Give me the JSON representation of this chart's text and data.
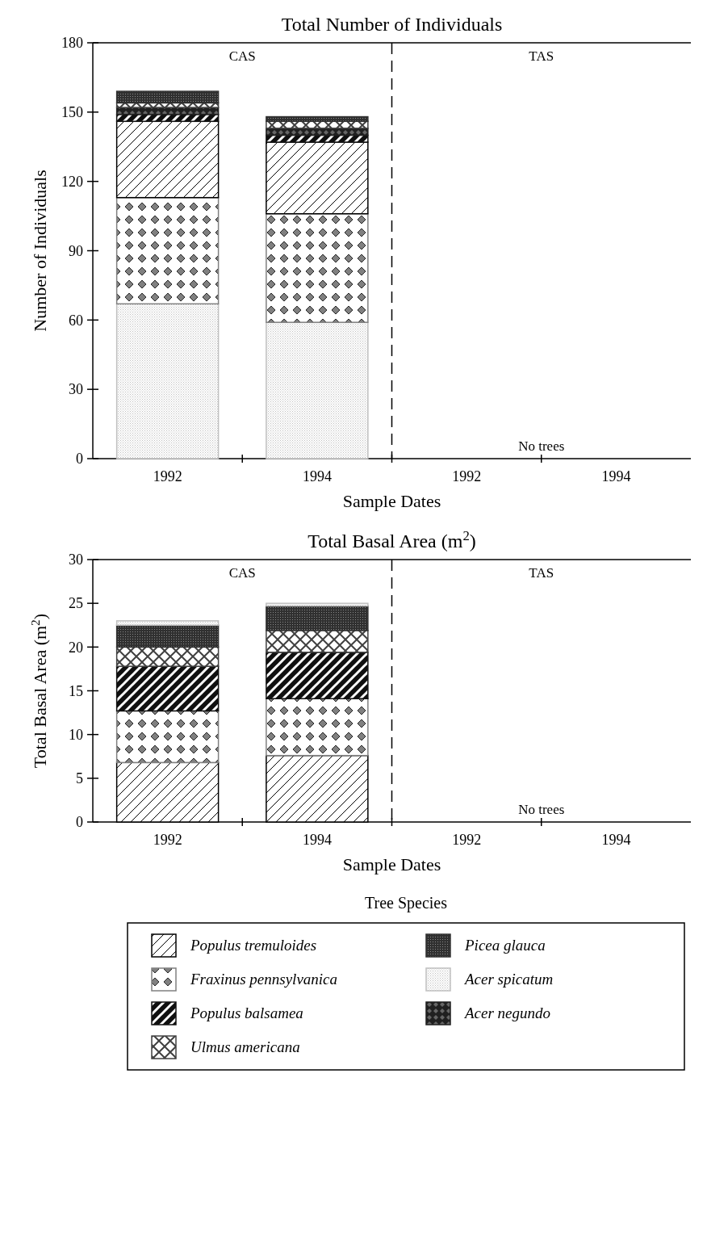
{
  "chart_data": [
    {
      "type": "bar",
      "stacked": true,
      "title": "Total Number of Individuals",
      "xlabel": "Sample Dates",
      "ylabel": "Number of Individuals",
      "categories": [
        "1992",
        "1994",
        "1992",
        "1994"
      ],
      "ylim": [
        0,
        180
      ],
      "yticks": [
        0,
        30,
        60,
        90,
        120,
        150,
        180
      ],
      "series": [
        {
          "color": "#c0c0c0",
          "values": [
            67,
            59,
            0,
            0
          ]
        },
        {
          "color": "#808080",
          "values": [
            46,
            47,
            0,
            0
          ]
        },
        {
          "color": "#000000",
          "values": [
            33,
            31,
            0,
            0
          ]
        },
        {
          "color": "#101010",
          "values": [
            3,
            3,
            0,
            0
          ]
        },
        {
          "color": "#202020",
          "values": [
            3,
            3,
            0,
            0
          ]
        },
        {
          "color": "#404040",
          "values": [
            2,
            3,
            0,
            0
          ]
        },
        {
          "color": "#303030",
          "values": [
            5,
            2,
            0,
            0
          ]
        }
      ],
      "annotations": [
        "CAS",
        "TAS",
        "No trees"
      ]
    },
    {
      "type": "bar",
      "stacked": true,
      "title": "Total Basal Area (m$^{2}$)",
      "xlabel": "Sample Dates",
      "ylabel": "Total Basal Area (m$^{2}$)",
      "categories": [
        "1992",
        "1994",
        "1992",
        "1994"
      ],
      "ylim": [
        0,
        30
      ],
      "yticks": [
        0,
        5,
        10,
        15,
        20,
        25,
        30
      ],
      "legend": "bottom",
      "legend_title": "Tree Species",
      "series": [
        {
          "name": "Populus tremuloides",
          "color": "#000000",
          "values": [
            6.8,
            7.6,
            0,
            0
          ]
        },
        {
          "name": "Fraxinus pennsylvanica",
          "color": "#808080",
          "values": [
            5.9,
            6.5,
            0,
            0
          ]
        },
        {
          "name": "Populus balsamea",
          "color": "#101010",
          "values": [
            5.1,
            5.3,
            0,
            0
          ]
        },
        {
          "name": "Ulmus americana",
          "color": "#404040",
          "values": [
            2.2,
            2.5,
            0,
            0
          ]
        },
        {
          "name": "Picea glauca",
          "color": "#303030",
          "values": [
            2.5,
            2.8,
            0,
            0
          ]
        },
        {
          "name": "Acer spicatum",
          "color": "#c0c0c0",
          "values": [
            0.5,
            0.3,
            0,
            0
          ]
        },
        {
          "name": "Acer negundo",
          "color": "#202020",
          "values": [
            0,
            0,
            0,
            0
          ]
        }
      ],
      "annotations": [
        "CAS",
        "TAS",
        "No trees"
      ]
    }
  ]
}
